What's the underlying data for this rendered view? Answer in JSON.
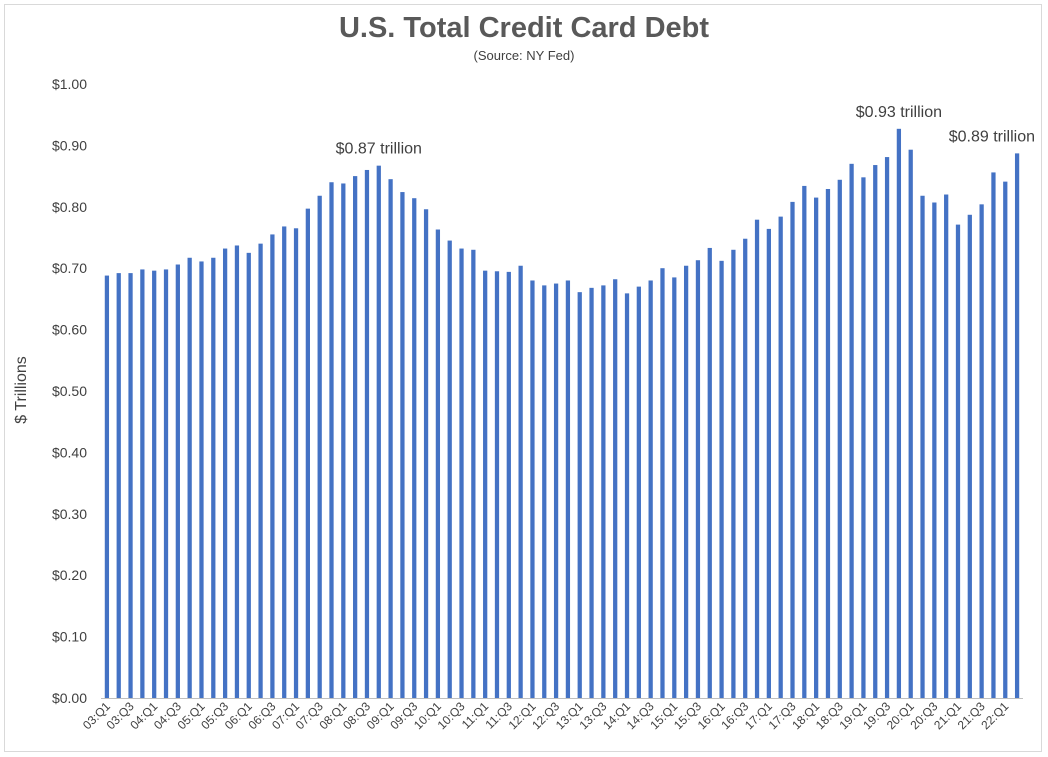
{
  "chart_data": {
    "type": "bar",
    "title": "U.S. Total Credit Card Debt",
    "subtitle": "(Source: NY Fed)",
    "ylabel": "$ Trillions",
    "xlabel": "",
    "ylim": [
      0,
      1.0
    ],
    "yticks": [
      "$0.00",
      "$0.10",
      "$0.20",
      "$0.30",
      "$0.40",
      "$0.50",
      "$0.60",
      "$0.70",
      "$0.80",
      "$0.90",
      "$1.00"
    ],
    "grid": false,
    "bar_color": "#4472c4",
    "categories": [
      "03:Q1",
      "03:Q2",
      "03:Q3",
      "03:Q4",
      "04:Q1",
      "04:Q2",
      "04:Q3",
      "04:Q4",
      "05:Q1",
      "05:Q2",
      "05:Q3",
      "05:Q4",
      "06:Q1",
      "06:Q2",
      "06:Q3",
      "06:Q4",
      "07:Q1",
      "07:Q2",
      "07:Q3",
      "07:Q4",
      "08:Q1",
      "08:Q2",
      "08:Q3",
      "08:Q4",
      "09:Q1",
      "09:Q2",
      "09:Q3",
      "09:Q4",
      "10:Q1",
      "10:Q2",
      "10:Q3",
      "10:Q4",
      "11:Q1",
      "11:Q2",
      "11:Q3",
      "11:Q4",
      "12:Q1",
      "12:Q2",
      "12:Q3",
      "12:Q4",
      "13:Q1",
      "13:Q2",
      "13:Q3",
      "13:Q4",
      "14:Q1",
      "14:Q2",
      "14:Q3",
      "14:Q4",
      "15:Q1",
      "15:Q2",
      "15:Q3",
      "15:Q4",
      "16:Q1",
      "16:Q2",
      "16:Q3",
      "16:Q4",
      "17:Q1",
      "17:Q2",
      "17:Q3",
      "17:Q4",
      "18:Q1",
      "18:Q2",
      "18:Q3",
      "18:Q4",
      "19:Q1",
      "19:Q2",
      "19:Q3",
      "19:Q4",
      "20:Q1",
      "20:Q2",
      "20:Q3",
      "20:Q4",
      "21:Q1",
      "21:Q2",
      "21:Q3",
      "21:Q4",
      "22:Q1",
      "22:Q2"
    ],
    "tick_labels_shown": [
      "03:Q1",
      "03:Q3",
      "04:Q1",
      "04:Q3",
      "05:Q1",
      "05:Q3",
      "06:Q1",
      "06:Q3",
      "07:Q1",
      "07:Q3",
      "08:Q1",
      "08:Q3",
      "09:Q1",
      "09:Q3",
      "10:Q1",
      "10:Q3",
      "11:Q1",
      "11:Q3",
      "12:Q1",
      "12:Q3",
      "13:Q1",
      "13:Q3",
      "14:Q1",
      "14:Q3",
      "15:Q1",
      "15:Q3",
      "16:Q1",
      "16:Q3",
      "17:Q1",
      "17:Q3",
      "18:Q1",
      "18:Q3",
      "19:Q1",
      "19:Q3",
      "20:Q1",
      "20:Q3",
      "21:Q1",
      "21:Q3",
      "22:Q1"
    ],
    "values": [
      0.688,
      0.692,
      0.692,
      0.698,
      0.696,
      0.698,
      0.706,
      0.717,
      0.711,
      0.717,
      0.732,
      0.737,
      0.725,
      0.74,
      0.755,
      0.768,
      0.765,
      0.797,
      0.818,
      0.84,
      0.838,
      0.85,
      0.86,
      0.867,
      0.845,
      0.824,
      0.814,
      0.796,
      0.763,
      0.745,
      0.732,
      0.73,
      0.696,
      0.695,
      0.694,
      0.704,
      0.68,
      0.672,
      0.675,
      0.68,
      0.661,
      0.668,
      0.672,
      0.682,
      0.659,
      0.67,
      0.68,
      0.7,
      0.685,
      0.704,
      0.713,
      0.733,
      0.712,
      0.73,
      0.748,
      0.779,
      0.764,
      0.784,
      0.808,
      0.834,
      0.815,
      0.829,
      0.844,
      0.87,
      0.848,
      0.868,
      0.881,
      0.927,
      0.893,
      0.818,
      0.807,
      0.82,
      0.771,
      0.787,
      0.804,
      0.856,
      0.841,
      0.887
    ],
    "annotations": [
      {
        "text": "$0.87 trillion",
        "category": "08:Q4"
      },
      {
        "text": "$0.93 trillion",
        "category": "19:Q4"
      },
      {
        "text": "$0.89 trillion",
        "category": "22:Q2"
      }
    ]
  }
}
